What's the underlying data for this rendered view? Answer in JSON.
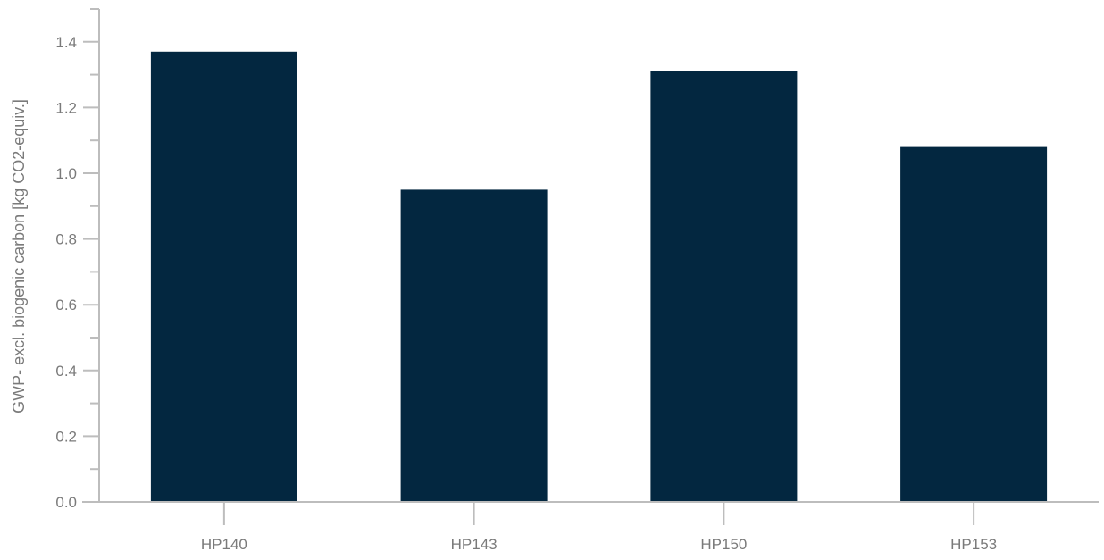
{
  "chart_data": {
    "type": "bar",
    "categories": [
      "HP140",
      "HP143",
      "HP150",
      "HP153"
    ],
    "values": [
      1.37,
      0.95,
      1.31,
      1.08
    ],
    "title": "",
    "xlabel": "",
    "ylabel": "GWP- excl. biogenic carbon [kg CO2-equiv.]",
    "ylim": [
      0,
      1.5
    ],
    "yticks": [
      0.0,
      0.2,
      0.4,
      0.6,
      0.8,
      1.0,
      1.2,
      1.4
    ],
    "ytick_labels": [
      "0.0",
      "0.2",
      "0.4",
      "0.6",
      "0.8",
      "1.0",
      "1.2",
      "1.4"
    ],
    "minor_tick_step": 0.1,
    "grid": false,
    "legend": "none",
    "bar_color": "#032740"
  }
}
